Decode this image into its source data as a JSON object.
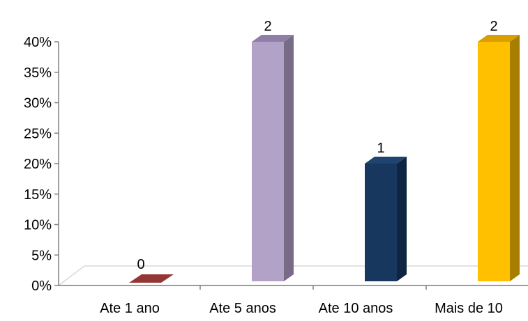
{
  "chart_data": {
    "type": "bar",
    "title": "",
    "xlabel": "",
    "ylabel": "",
    "categories": [
      "Ate 1 ano",
      "Ate 5 anos",
      "Ate 10 anos",
      "Mais de 10"
    ],
    "values": [
      0,
      40,
      20,
      40
    ],
    "value_unit": "%",
    "data_labels": [
      "0",
      "2",
      "1",
      "2"
    ],
    "ylim": [
      0,
      40
    ],
    "y_ticks": [
      "0%",
      "5%",
      "10%",
      "15%",
      "20%",
      "25%",
      "30%",
      "35%",
      "40%"
    ],
    "y_tick_values": [
      0,
      5,
      10,
      15,
      20,
      25,
      30,
      35,
      40
    ],
    "grid": false,
    "legend": "none",
    "style": "3d-column",
    "colors": {
      "bars_front": [
        "#943634",
        "#B3A2C7",
        "#17375E",
        "#FFC000"
      ],
      "bars_side": [
        "#6E2725",
        "#776B86",
        "#0E2440",
        "#A87E00"
      ],
      "bars_top": [
        "#7E2D2B",
        "#8F7FA6",
        "#1F4470",
        "#D99F00"
      ],
      "axis": "#808080",
      "floor": "#D9D9D9"
    }
  }
}
